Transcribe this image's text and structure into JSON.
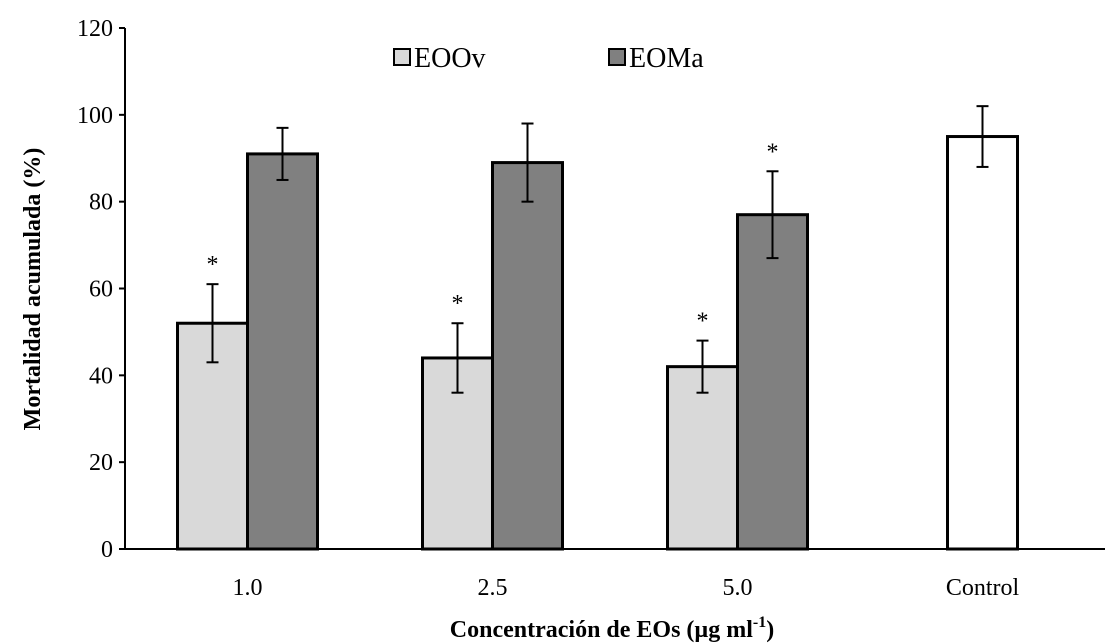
{
  "chart_data": {
    "type": "bar",
    "xlabel": "Concentración de EOs (µg ml",
    "xlabel_superscript": "-1",
    "xlabel_suffix": ")",
    "ylabel": "Mortalidad acumulada (%)",
    "ylim": [
      0,
      120
    ],
    "yticks": [
      "0",
      "20",
      "40",
      "60",
      "80",
      "100",
      "120"
    ],
    "categories": [
      "1.0",
      "2.5",
      "5.0",
      "Control"
    ],
    "grid": false,
    "legend_position": "top-center",
    "series": [
      {
        "name": "EOOv",
        "color": "#d9d9d9",
        "values": [
          52,
          44,
          42,
          null
        ],
        "error": [
          9,
          8,
          6,
          null
        ],
        "significance": [
          "*",
          "*",
          "*",
          null
        ]
      },
      {
        "name": "EOMa",
        "color": "#808080",
        "values": [
          91,
          89,
          77,
          null
        ],
        "error": [
          6,
          9,
          10,
          null
        ],
        "significance": [
          null,
          null,
          "*",
          null
        ]
      },
      {
        "name": "",
        "color": "#ffffff",
        "values": [
          null,
          null,
          null,
          95
        ],
        "error": [
          null,
          null,
          null,
          7
        ],
        "significance": [
          null,
          null,
          null,
          null
        ]
      }
    ]
  }
}
